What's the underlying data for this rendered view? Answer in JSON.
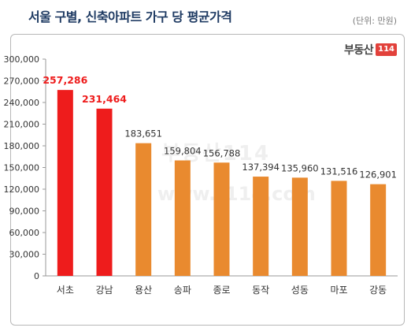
{
  "header": {
    "title": "서울 구별, 신축아파트 가구 당 평균가격",
    "unit": "(단위: 만원)"
  },
  "brand": {
    "name": "부동산",
    "number": "114",
    "watermark_name": "부동산114",
    "watermark_url": "www.r114.com"
  },
  "colors": {
    "highlight": "#ee1c1c",
    "default": "#e98a2f",
    "highlight_label": "#ee1c1c",
    "default_label": "#333333"
  },
  "chart_data": {
    "type": "bar",
    "title": "서울 구별, 신축아파트 가구 당 평균가격",
    "unit": "(단위: 만원)",
    "xlabel": "",
    "ylabel": "",
    "categories": [
      "서초",
      "강남",
      "용산",
      "송파",
      "종로",
      "동작",
      "성동",
      "마포",
      "강동"
    ],
    "values": [
      257286,
      231464,
      183651,
      159804,
      156788,
      137394,
      135960,
      131516,
      126901
    ],
    "highlighted": [
      true,
      true,
      false,
      false,
      false,
      false,
      false,
      false,
      false
    ],
    "value_labels": [
      "257,286",
      "231,464",
      "183,651",
      "159,804",
      "156,788",
      "137,394",
      "135,960",
      "131,516",
      "126,901"
    ],
    "ylim": [
      0,
      300000
    ],
    "yticks": [
      0,
      30000,
      60000,
      90000,
      120000,
      150000,
      180000,
      210000,
      240000,
      270000,
      300000
    ],
    "ytick_labels": [
      "0",
      "30,000",
      "60,000",
      "90,000",
      "120,000",
      "150,000",
      "180,000",
      "210,000",
      "240,000",
      "270,000",
      "300,000"
    ],
    "grid": false,
    "legend": "none"
  }
}
